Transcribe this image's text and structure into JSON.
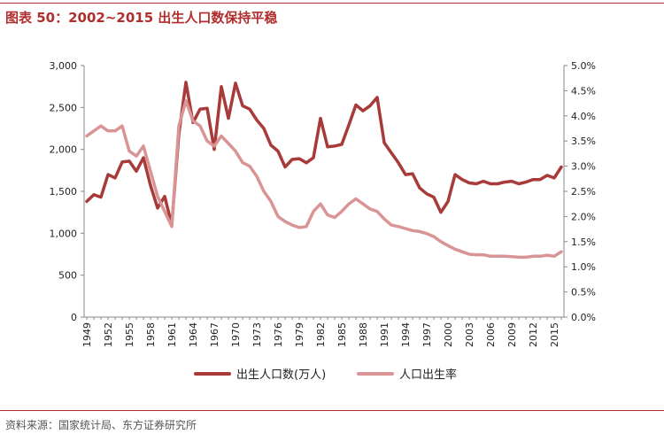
{
  "figure": {
    "title": "图表 50：2002~2015 出生人口数保持平稳",
    "source": "资料来源：国家统计局、东方证券研究所"
  },
  "colors": {
    "accent": "#b12e2e",
    "series_births": "#a83a3a",
    "series_rate": "#d99595",
    "axis": "#888888"
  },
  "chart_data": {
    "type": "line",
    "title": "2002~2015 出生人口数保持平稳",
    "x": [
      1949,
      1950,
      1951,
      1952,
      1953,
      1954,
      1955,
      1956,
      1957,
      1958,
      1959,
      1960,
      1961,
      1962,
      1963,
      1964,
      1965,
      1966,
      1967,
      1968,
      1969,
      1970,
      1971,
      1972,
      1973,
      1974,
      1975,
      1976,
      1977,
      1978,
      1979,
      1980,
      1981,
      1982,
      1983,
      1984,
      1985,
      1986,
      1987,
      1988,
      1989,
      1990,
      1991,
      1992,
      1993,
      1994,
      1995,
      1996,
      1997,
      1998,
      1999,
      2000,
      2001,
      2002,
      2003,
      2004,
      2005,
      2006,
      2007,
      2008,
      2009,
      2010,
      2011,
      2012,
      2013,
      2014,
      2015,
      2016
    ],
    "x_ticks": [
      "1949",
      "1952",
      "1955",
      "1958",
      "1961",
      "1964",
      "1967",
      "1970",
      "1973",
      "1976",
      "1979",
      "1982",
      "1985",
      "1988",
      "1991",
      "1994",
      "1997",
      "2000",
      "2003",
      "2006",
      "2009",
      "2012",
      "2015"
    ],
    "y_left": {
      "ylim": [
        0,
        3000
      ],
      "ticks": [
        "0",
        "500",
        "1,000",
        "1,500",
        "2,000",
        "2,500",
        "3,000"
      ],
      "tick_values": [
        0,
        500,
        1000,
        1500,
        2000,
        2500,
        3000
      ]
    },
    "y_right": {
      "ylim": [
        0.0,
        5.0
      ],
      "ticks": [
        "0.0%",
        "0.5%",
        "1.0%",
        "1.5%",
        "2.0%",
        "2.5%",
        "3.0%",
        "3.5%",
        "4.0%",
        "4.5%",
        "5.0%"
      ],
      "tick_values": [
        0,
        0.5,
        1,
        1.5,
        2,
        2.5,
        3,
        3.5,
        4,
        4.5,
        5
      ]
    },
    "series": [
      {
        "name": "出生人口数(万人)",
        "axis": "left",
        "values": [
          1380,
          1460,
          1430,
          1700,
          1660,
          1850,
          1860,
          1740,
          1900,
          1570,
          1300,
          1440,
          1100,
          2180,
          2800,
          2320,
          2480,
          2490,
          2000,
          2750,
          2370,
          2790,
          2520,
          2480,
          2350,
          2250,
          2050,
          1980,
          1790,
          1880,
          1890,
          1840,
          1900,
          2370,
          2030,
          2040,
          2060,
          2290,
          2530,
          2460,
          2520,
          2620,
          2080,
          1960,
          1840,
          1700,
          1710,
          1540,
          1470,
          1430,
          1250,
          1380,
          1700,
          1640,
          1600,
          1590,
          1620,
          1590,
          1590,
          1610,
          1620,
          1590,
          1610,
          1640,
          1640,
          1690,
          1660,
          1790
        ]
      },
      {
        "name": "人口出生率",
        "axis": "right",
        "values": [
          3.6,
          3.7,
          3.8,
          3.7,
          3.7,
          3.8,
          3.3,
          3.2,
          3.4,
          2.9,
          2.4,
          2.1,
          1.8,
          3.8,
          4.3,
          3.9,
          3.8,
          3.5,
          3.4,
          3.6,
          3.45,
          3.3,
          3.07,
          3.0,
          2.8,
          2.5,
          2.3,
          2.0,
          1.9,
          1.83,
          1.78,
          1.8,
          2.1,
          2.25,
          2.03,
          1.98,
          2.1,
          2.25,
          2.35,
          2.25,
          2.15,
          2.1,
          1.95,
          1.83,
          1.8,
          1.76,
          1.72,
          1.7,
          1.66,
          1.6,
          1.5,
          1.42,
          1.35,
          1.3,
          1.25,
          1.24,
          1.24,
          1.21,
          1.21,
          1.21,
          1.2,
          1.19,
          1.19,
          1.21,
          1.21,
          1.23,
          1.21,
          1.3
        ]
      }
    ],
    "legend": [
      "出生人口数(万人)",
      "人口出生率"
    ],
    "legend_position": "bottom"
  }
}
